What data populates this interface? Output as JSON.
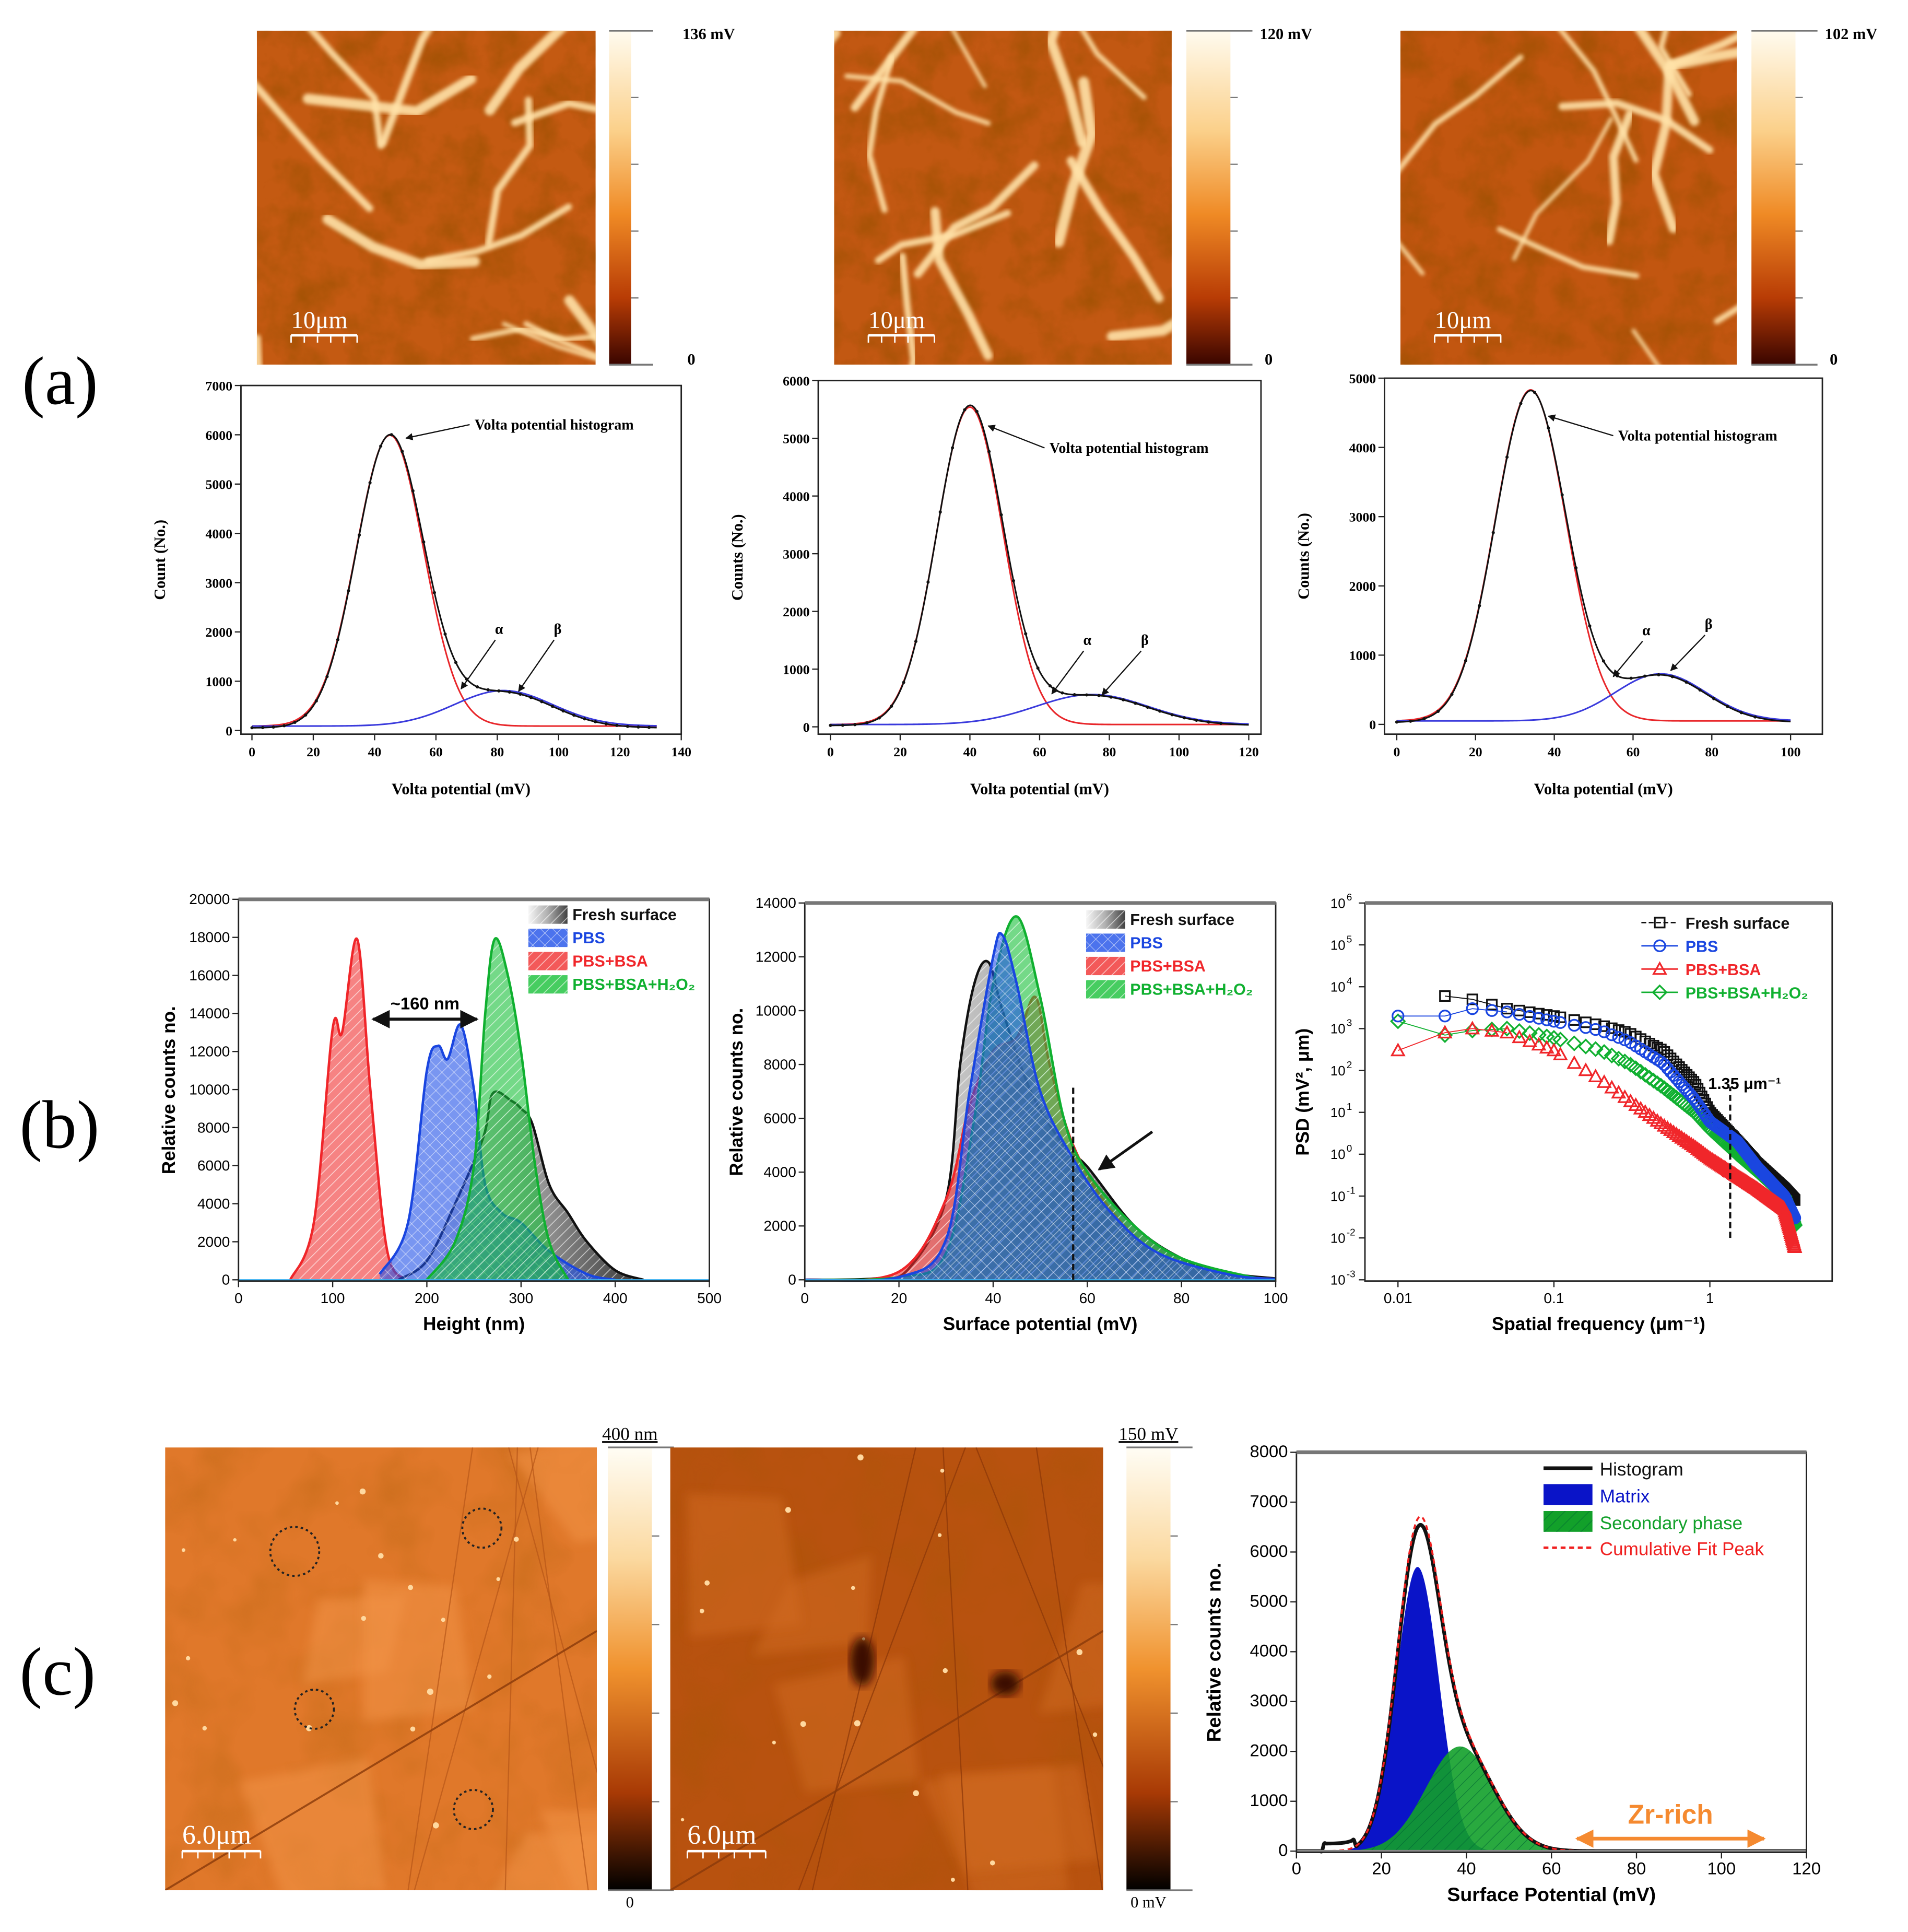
{
  "figure_labels": {
    "a": "(a)",
    "b": "(b)",
    "c": "(c)"
  },
  "maps": [
    {
      "scale_bar": "10μm",
      "colorbar_max": "136 mV",
      "colorbar_min": "0"
    },
    {
      "scale_bar": "10μm",
      "colorbar_max": "120 mV",
      "colorbar_min": "0"
    },
    {
      "scale_bar": "10μm",
      "colorbar_max": "102 mV",
      "colorbar_min": "0"
    },
    {
      "scale_bar": "6.0μm",
      "colorbar_max": "400 nm",
      "colorbar_min": "0"
    },
    {
      "scale_bar": "6.0μm",
      "colorbar_max": "150 mV",
      "colorbar_min": "0 mV"
    }
  ],
  "colors": {
    "fit_red": "#e8262a",
    "fit_blue": "#3a3adc",
    "fresh": "#111111",
    "pbs": "#1a46e0",
    "pbs_bsa": "#f0262a",
    "pbs_bsa_h2o2": "#10b030",
    "matrix": "#0a14c8",
    "secondary": "#12a02a",
    "zr_rich": "#f58a30"
  },
  "chart_data": [
    {
      "type": "line",
      "xlabel": "Volta potential (mV)",
      "ylabel": "Count (No.)",
      "xlim": [
        0,
        140
      ],
      "ylim": [
        0,
        7000
      ],
      "xticks": [
        0,
        20,
        40,
        60,
        80,
        100,
        120,
        140
      ],
      "yticks": [
        0,
        1000,
        2000,
        3000,
        4000,
        5000,
        6000,
        7000
      ],
      "annotation": "Volta potential histogram",
      "peak_labels": [
        "α",
        "β"
      ],
      "baseline": 90,
      "components": [
        {
          "name": "main peak fit",
          "color": "#e8262a",
          "center": 45,
          "amplitude": 5900,
          "sigma": 11
        },
        {
          "name": "secondary peak fit",
          "color": "#3a3adc",
          "center": 82,
          "amplitude": 720,
          "sigma": 16
        }
      ]
    },
    {
      "type": "line",
      "xlabel": "Volta potential (mV)",
      "ylabel": "Counts (No.)",
      "xlim": [
        0,
        120
      ],
      "ylim": [
        0,
        6000
      ],
      "xticks": [
        0,
        20,
        40,
        60,
        80,
        100,
        120
      ],
      "yticks": [
        0,
        1000,
        2000,
        3000,
        4000,
        5000,
        6000
      ],
      "annotation": "Volta potential histogram",
      "peak_labels": [
        "α",
        "β"
      ],
      "baseline": 40,
      "components": [
        {
          "name": "main peak fit",
          "color": "#e8262a",
          "center": 40,
          "amplitude": 5500,
          "sigma": 9.5
        },
        {
          "name": "secondary peak fit",
          "color": "#3a3adc",
          "center": 75,
          "amplitude": 520,
          "sigma": 16
        }
      ]
    },
    {
      "type": "line",
      "xlabel": "Volta potential (mV)",
      "ylabel": "Counts (No.)",
      "xlim": [
        0,
        100
      ],
      "ylim": [
        0,
        5000
      ],
      "xticks": [
        0,
        20,
        40,
        60,
        80,
        100
      ],
      "yticks": [
        0,
        1000,
        2000,
        3000,
        4000,
        5000
      ],
      "annotation": "Volta potential histogram",
      "peak_labels": [
        "α",
        "β"
      ],
      "baseline": 50,
      "components": [
        {
          "name": "main peak fit",
          "color": "#e8262a",
          "center": 34,
          "amplitude": 4780,
          "sigma": 9
        },
        {
          "name": "secondary peak fit",
          "color": "#3a3adc",
          "center": 67,
          "amplitude": 680,
          "sigma": 11.5
        }
      ]
    },
    {
      "type": "area",
      "xlabel": "Height (nm)",
      "ylabel": "Relative counts no.",
      "xlim": [
        0,
        500
      ],
      "ylim": [
        0,
        20000
      ],
      "xticks": [
        0,
        100,
        200,
        300,
        400,
        500
      ],
      "yticks": [
        0,
        2000,
        4000,
        6000,
        8000,
        10000,
        12000,
        14000,
        16000,
        18000,
        20000
      ],
      "annotation": "~160 nm",
      "annotation_range": [
        143,
        253
      ],
      "annotation_y": 13700,
      "legend": "top-right",
      "series": [
        {
          "name": "Fresh surface",
          "color": "#111111",
          "points": [
            [
              170,
              0
            ],
            [
              200,
              1000
            ],
            [
              230,
              4000
            ],
            [
              260,
              7500
            ],
            [
              270,
              9800
            ],
            [
              290,
              9400
            ],
            [
              300,
              9000
            ],
            [
              312,
              8200
            ],
            [
              330,
              5000
            ],
            [
              350,
              3500
            ],
            [
              370,
              2000
            ],
            [
              400,
              500
            ],
            [
              430,
              0
            ]
          ]
        },
        {
          "name": "PBS",
          "color": "#1a46e0",
          "points": [
            [
              150,
              300
            ],
            [
              180,
              3000
            ],
            [
              200,
              11000
            ],
            [
              212,
              12300
            ],
            [
              222,
              11600
            ],
            [
              236,
              13400
            ],
            [
              250,
              10000
            ],
            [
              262,
              5000
            ],
            [
              280,
              3500
            ],
            [
              300,
              3000
            ],
            [
              330,
              1500
            ],
            [
              370,
              300
            ],
            [
              400,
              0
            ]
          ]
        },
        {
          "name": "PBS+BSA",
          "color": "#f0262a",
          "points": [
            [
              55,
              0
            ],
            [
              80,
              3000
            ],
            [
              100,
              13200
            ],
            [
              110,
              13000
            ],
            [
              126,
              17900
            ],
            [
              140,
              10000
            ],
            [
              158,
              1500
            ],
            [
              180,
              0
            ]
          ]
        },
        {
          "name": "PBS+BSA+H₂O₂",
          "color": "#10b030",
          "points": [
            [
              200,
              0
            ],
            [
              230,
              2000
            ],
            [
              250,
              6000
            ],
            [
              262,
              14000
            ],
            [
              272,
              17900
            ],
            [
              286,
              16000
            ],
            [
              300,
              12000
            ],
            [
              315,
              6000
            ],
            [
              330,
              2000
            ],
            [
              350,
              0
            ]
          ]
        }
      ]
    },
    {
      "type": "area",
      "xlabel": "Surface potential (mV)",
      "ylabel": "Relative counts no.",
      "xlim": [
        0,
        100
      ],
      "ylim": [
        0,
        14000
      ],
      "xticks": [
        0,
        20,
        40,
        60,
        80,
        100
      ],
      "yticks": [
        0,
        2000,
        4000,
        6000,
        8000,
        10000,
        12000,
        14000
      ],
      "marker_x": 57,
      "legend": "top-right",
      "series": [
        {
          "name": "Fresh surface",
          "color": "#111111",
          "points": [
            [
              0,
              0
            ],
            [
              15,
              50
            ],
            [
              22,
              400
            ],
            [
              30,
              3000
            ],
            [
              33,
              8000
            ],
            [
              36,
              11000
            ],
            [
              39,
              11800
            ],
            [
              42,
              10000
            ],
            [
              48,
              7000
            ],
            [
              55,
              5000
            ],
            [
              60,
              4200
            ],
            [
              70,
              2000
            ],
            [
              80,
              800
            ],
            [
              90,
              250
            ],
            [
              100,
              50
            ]
          ]
        },
        {
          "name": "PBS",
          "color": "#1a46e0",
          "points": [
            [
              0,
              0
            ],
            [
              20,
              100
            ],
            [
              30,
              1500
            ],
            [
              35,
              7000
            ],
            [
              40,
              12000
            ],
            [
              42,
              12800
            ],
            [
              45,
              11000
            ],
            [
              50,
              7000
            ],
            [
              57,
              4500
            ],
            [
              65,
              2500
            ],
            [
              75,
              1000
            ],
            [
              90,
              200
            ],
            [
              100,
              30
            ]
          ]
        },
        {
          "name": "PBS+BSA",
          "color": "#f0262a",
          "points": [
            [
              0,
              0
            ],
            [
              20,
              300
            ],
            [
              30,
              3000
            ],
            [
              35,
              6500
            ],
            [
              40,
              8500
            ],
            [
              45,
              9000
            ],
            [
              49,
              10500
            ],
            [
              52,
              8000
            ],
            [
              57,
              5000
            ],
            [
              65,
              2600
            ],
            [
              75,
              1000
            ],
            [
              90,
              200
            ],
            [
              100,
              30
            ]
          ]
        },
        {
          "name": "PBS+BSA+H₂O₂",
          "color": "#10b030",
          "points": [
            [
              0,
              0
            ],
            [
              20,
              100
            ],
            [
              30,
              1000
            ],
            [
              36,
              6000
            ],
            [
              40,
              11000
            ],
            [
              45,
              13500
            ],
            [
              50,
              10500
            ],
            [
              55,
              6000
            ],
            [
              60,
              4000
            ],
            [
              70,
              2000
            ],
            [
              80,
              800
            ],
            [
              95,
              100
            ],
            [
              100,
              30
            ]
          ]
        }
      ]
    },
    {
      "type": "scatter",
      "xlabel": "Spatial frequency (μm⁻¹)",
      "ylabel": "PSD (mV², μm)",
      "xscale": "log",
      "yscale": "log",
      "xlim": [
        0.01,
        5
      ],
      "ylim": [
        0.001,
        1000000
      ],
      "xticks": [
        0.01,
        0.1,
        1
      ],
      "xtick_labels": [
        "0.01",
        "0.1",
        "1"
      ],
      "ytick_base": "10",
      "ytick_exponents": [
        -3,
        -2,
        -1,
        0,
        1,
        2,
        3,
        4,
        5,
        6
      ],
      "annotation": "1.35 μm⁻¹",
      "marker_x": 1.35,
      "legend": "top-right",
      "series": [
        {
          "name": "Fresh surface",
          "marker": "square",
          "color": "#111111",
          "points": [
            [
              0.02,
              6000
            ],
            [
              0.03,
              5000
            ],
            [
              0.05,
              3000
            ],
            [
              0.1,
              2000
            ],
            [
              0.2,
              1200
            ],
            [
              0.3,
              800
            ],
            [
              0.5,
              300
            ],
            [
              0.8,
              50
            ],
            [
              1,
              10
            ],
            [
              1.5,
              2
            ],
            [
              2,
              0.6
            ],
            [
              3,
              0.15
            ],
            [
              3.5,
              0.08
            ]
          ]
        },
        {
          "name": "PBS",
          "marker": "circle",
          "color": "#1a46e0",
          "points": [
            [
              0.01,
              2000
            ],
            [
              0.02,
              2000
            ],
            [
              0.03,
              3000
            ],
            [
              0.05,
              2500
            ],
            [
              0.1,
              1500
            ],
            [
              0.2,
              900
            ],
            [
              0.3,
              500
            ],
            [
              0.5,
              150
            ],
            [
              0.8,
              20
            ],
            [
              1,
              6
            ],
            [
              1.5,
              2
            ],
            [
              2,
              0.5
            ],
            [
              3,
              0.1
            ],
            [
              3.5,
              0.03
            ]
          ]
        },
        {
          "name": "PBS+BSA",
          "marker": "triangle",
          "color": "#f0262a",
          "points": [
            [
              0.01,
              300
            ],
            [
              0.02,
              800
            ],
            [
              0.03,
              1000
            ],
            [
              0.05,
              800
            ],
            [
              0.1,
              300
            ],
            [
              0.2,
              60
            ],
            [
              0.3,
              20
            ],
            [
              0.5,
              5
            ],
            [
              0.8,
              1.5
            ],
            [
              1,
              0.8
            ],
            [
              1.5,
              0.3
            ],
            [
              2,
              0.15
            ],
            [
              3,
              0.05
            ],
            [
              3.5,
              0.006
            ]
          ]
        },
        {
          "name": "PBS+BSA+H₂O₂",
          "marker": "diamond",
          "color": "#10b030",
          "points": [
            [
              0.01,
              1500
            ],
            [
              0.02,
              700
            ],
            [
              0.03,
              900
            ],
            [
              0.05,
              1000
            ],
            [
              0.1,
              600
            ],
            [
              0.2,
              300
            ],
            [
              0.3,
              150
            ],
            [
              0.5,
              40
            ],
            [
              0.8,
              10
            ],
            [
              1,
              4
            ],
            [
              1.5,
              1
            ],
            [
              2,
              0.4
            ],
            [
              3,
              0.1
            ],
            [
              3.5,
              0.02
            ]
          ]
        }
      ]
    },
    {
      "type": "area",
      "xlabel": "Surface Potential (mV)",
      "ylabel": "Relative counts no.",
      "xlim": [
        0,
        120
      ],
      "ylim": [
        0,
        8000
      ],
      "xticks": [
        0,
        20,
        40,
        60,
        80,
        100,
        120
      ],
      "yticks": [
        0,
        1000,
        2000,
        3000,
        4000,
        5000,
        6000,
        7000,
        8000
      ],
      "legend_labels": [
        "Histogram",
        "Matrix",
        "Secondary phase",
        "Cumulative Fit Peak"
      ],
      "annotation": "Zr-rich",
      "annotation_range": [
        66,
        110
      ],
      "components": [
        {
          "name": "Matrix",
          "color": "#0a14c8",
          "center": 28.5,
          "amplitude": 5700,
          "sigma": 5
        },
        {
          "name": "Secondary phase",
          "color": "#12a02a",
          "center": 38.5,
          "amplitude": 2100,
          "sigma": 8
        }
      ]
    }
  ]
}
